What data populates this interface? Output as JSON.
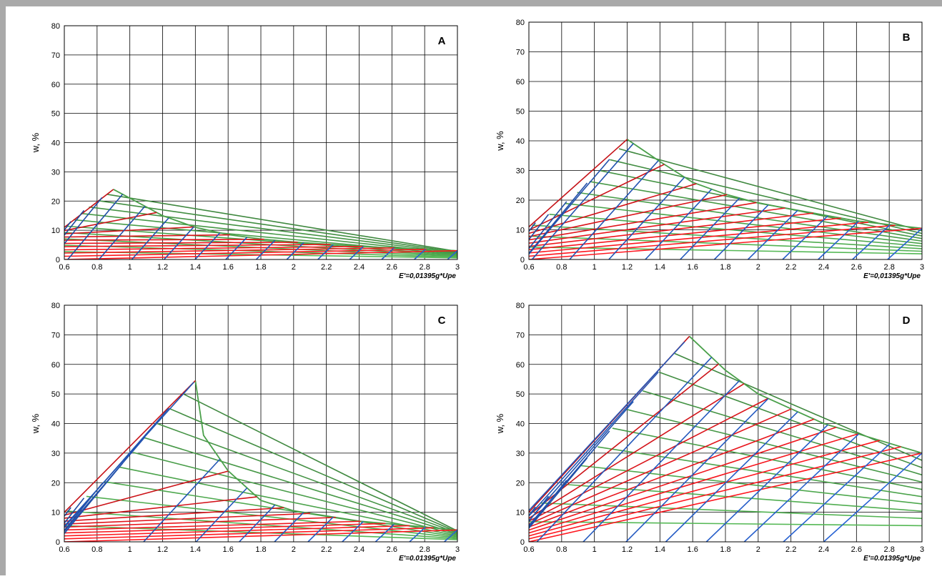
{
  "colors": {
    "grid": "#000000",
    "red_family": "#e8141b",
    "blue_family": "#2356b8",
    "green_family": "#4aa04a",
    "frame": "#a9a9a9"
  },
  "chart_data": [
    {
      "type": "line",
      "panel_label": "A",
      "ylabel": "w, %",
      "xlabel": "E'=0,01395g*Upe",
      "xlim": [
        0.6,
        3
      ],
      "ylim": [
        0,
        80
      ],
      "x_ticks": [
        "0.6",
        "0.8",
        "1",
        "1.2",
        "1.4",
        "1.6",
        "1.8",
        "2",
        "2.2",
        "2.4",
        "2.6",
        "2.8",
        "3"
      ],
      "y_ticks": [
        "0",
        "10",
        "20",
        "30",
        "40",
        "50",
        "60",
        "70",
        "80"
      ],
      "grid": true,
      "peak": [
        0.9,
        24
      ],
      "envelope": [
        [
          0.6,
          11
        ],
        [
          0.7,
          16
        ],
        [
          0.8,
          20
        ],
        [
          0.9,
          24
        ],
        [
          1.0,
          21
        ],
        [
          1.2,
          15
        ],
        [
          1.4,
          11
        ],
        [
          1.6,
          8.5
        ],
        [
          1.8,
          7
        ],
        [
          2.0,
          6
        ],
        [
          2.4,
          4.5
        ],
        [
          3.0,
          3
        ]
      ],
      "red_lines_count": 11,
      "blue_lines_count": 16,
      "green_lines_count": 10
    },
    {
      "type": "line",
      "panel_label": "B",
      "ylabel": "w, %",
      "xlabel": "E'=0,01395g*Upe",
      "xlim": [
        0.6,
        3
      ],
      "ylim": [
        0,
        80
      ],
      "x_ticks": [
        "0.6",
        "0.8",
        "1",
        "1.2",
        "1.4",
        "1.6",
        "1.8",
        "2",
        "2.2",
        "2.4",
        "2.6",
        "2.8",
        "3"
      ],
      "y_ticks": [
        "0",
        "10",
        "20",
        "30",
        "40",
        "50",
        "60",
        "70",
        "80"
      ],
      "grid": true,
      "peak": [
        1.2,
        40.5
      ],
      "envelope": [
        [
          0.6,
          11
        ],
        [
          0.8,
          18
        ],
        [
          1.0,
          28
        ],
        [
          1.2,
          40.5
        ],
        [
          1.4,
          33
        ],
        [
          1.6,
          26
        ],
        [
          1.8,
          22
        ],
        [
          2.0,
          19
        ],
        [
          2.4,
          15
        ],
        [
          2.6,
          13
        ],
        [
          3.0,
          10.5
        ]
      ],
      "red_lines_count": 11,
      "blue_lines_count": 16,
      "green_lines_count": 10
    },
    {
      "type": "line",
      "panel_label": "C",
      "ylabel": "w, %",
      "xlabel": "E'=0.01395g*Upe",
      "xlim": [
        0.6,
        3
      ],
      "ylim": [
        0,
        80
      ],
      "x_ticks": [
        "0.6",
        "0.8",
        "1",
        "1.2",
        "1.4",
        "1.6",
        "1.8",
        "2",
        "2.2",
        "2.4",
        "2.6",
        "2.8",
        "3"
      ],
      "y_ticks": [
        "0",
        "10",
        "20",
        "30",
        "40",
        "50",
        "60",
        "70",
        "80"
      ],
      "grid": true,
      "peak": [
        1.4,
        54.5
      ],
      "envelope": [
        [
          0.6,
          10
        ],
        [
          0.8,
          18
        ],
        [
          1.0,
          29
        ],
        [
          1.2,
          43
        ],
        [
          1.4,
          54.5
        ],
        [
          1.45,
          36
        ],
        [
          1.6,
          24
        ],
        [
          1.8,
          14
        ],
        [
          2.0,
          10.5
        ],
        [
          2.4,
          7
        ],
        [
          3.0,
          4
        ]
      ],
      "red_lines_count": 11,
      "blue_lines_count": 16,
      "green_lines_count": 10
    },
    {
      "type": "line",
      "panel_label": "D",
      "ylabel": "w, %",
      "xlabel": "E'=0.01395g*Upe",
      "xlim": [
        0.6,
        3
      ],
      "ylim": [
        0,
        80
      ],
      "x_ticks": [
        "0.6",
        "0.8",
        "1",
        "1.2",
        "1.4",
        "1.6",
        "1.8",
        "2",
        "2.2",
        "2.4",
        "2.6",
        "2.8",
        "3"
      ],
      "y_ticks": [
        "0",
        "10",
        "20",
        "30",
        "40",
        "50",
        "60",
        "70",
        "80"
      ],
      "grid": true,
      "peak": [
        1.58,
        69.5
      ],
      "envelope": [
        [
          0.6,
          10
        ],
        [
          0.8,
          19
        ],
        [
          1.0,
          31
        ],
        [
          1.2,
          45
        ],
        [
          1.4,
          58
        ],
        [
          1.58,
          69.5
        ],
        [
          1.8,
          58
        ],
        [
          2.0,
          50
        ],
        [
          2.2,
          45
        ],
        [
          2.4,
          40
        ],
        [
          2.7,
          35
        ],
        [
          3.0,
          30
        ]
      ],
      "red_lines_count": 11,
      "blue_lines_count": 16,
      "green_lines_count": 10
    }
  ]
}
